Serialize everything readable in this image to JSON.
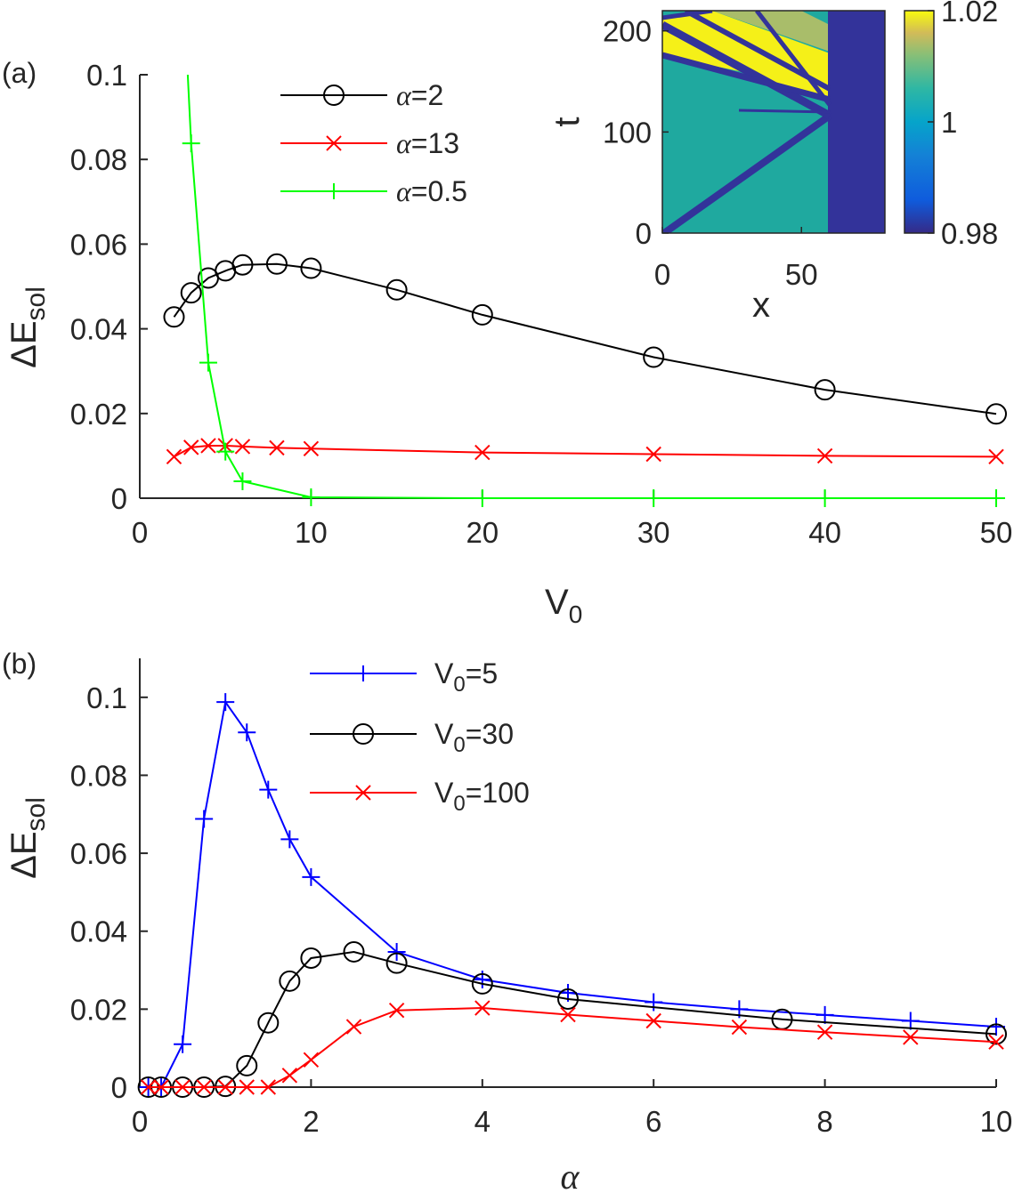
{
  "chart_data": [
    {
      "id": "a",
      "panel_label": "(a)",
      "type": "line",
      "xlabel": "V",
      "xlabel_sub": "0",
      "ylabel": "ΔE",
      "ylabel_sub": "sol",
      "xlim": [
        0,
        50
      ],
      "ylim": [
        0,
        0.1
      ],
      "xticks": [
        0,
        10,
        20,
        30,
        40,
        50
      ],
      "xtick_labels": [
        "0",
        "10",
        "20",
        "30",
        "40",
        "50"
      ],
      "yticks": [
        0,
        0.02,
        0.04,
        0.06,
        0.08,
        0.1
      ],
      "ytick_labels": [
        "0",
        "0.02",
        "0.04",
        "0.06",
        "0.08",
        "0.1"
      ],
      "legend_position": "top-center",
      "series": [
        {
          "name": "α=2",
          "sym": "α",
          "rest": "=2",
          "color": "#000000",
          "marker": "circle",
          "x": [
            2,
            3,
            4,
            5,
            6,
            8,
            10,
            15,
            20,
            30,
            40,
            50
          ],
          "y": [
            0.0428,
            0.0485,
            0.052,
            0.0537,
            0.0551,
            0.0553,
            0.0543,
            0.0492,
            0.0433,
            0.0333,
            0.0256,
            0.0199
          ]
        },
        {
          "name": "α=13",
          "sym": "α",
          "rest": "=13",
          "color": "#ff0000",
          "marker": "x",
          "x": [
            2,
            3,
            4,
            5,
            6,
            8,
            10,
            20,
            30,
            40,
            50
          ],
          "y": [
            0.0098,
            0.012,
            0.0124,
            0.0124,
            0.0122,
            0.0119,
            0.0117,
            0.0108,
            0.0104,
            0.01,
            0.0098
          ]
        },
        {
          "name": "α=0.5",
          "sym": "α",
          "rest": "=0.5",
          "color": "#00ff00",
          "marker": "plus",
          "x": [
            2.8,
            3,
            4,
            5,
            6,
            10,
            20,
            30,
            40,
            50
          ],
          "y": [
            0.1,
            0.0838,
            0.032,
            0.011,
            0.004,
            0.0002,
            0.0,
            0.0,
            0.0,
            0.0
          ],
          "marker_from": 1
        }
      ],
      "inset": {
        "type": "heatmap",
        "xlabel": "x",
        "ylabel": "t",
        "xticks": [
          0,
          50
        ],
        "yticks": [
          0,
          100,
          200
        ],
        "xlim": [
          0,
          80
        ],
        "ylim": [
          0,
          220
        ],
        "colorbar_ticks": [
          "0.98",
          "1",
          "1.02"
        ],
        "colorbar_range": [
          0.98,
          1.02
        ],
        "colors": {
          "background": "#20b0a0",
          "high": "#f5f018",
          "low": "#33339a"
        }
      }
    },
    {
      "id": "b",
      "panel_label": "(b)",
      "type": "line",
      "xlabel": "α",
      "ylabel": "ΔE",
      "ylabel_sub": "sol",
      "xlim": [
        0,
        10
      ],
      "ylim": [
        0,
        0.11
      ],
      "xticks": [
        0,
        2,
        4,
        6,
        8,
        10
      ],
      "xtick_labels": [
        "0",
        "2",
        "4",
        "6",
        "8",
        "10"
      ],
      "yticks": [
        0,
        0.02,
        0.04,
        0.06,
        0.08,
        0.1
      ],
      "ytick_labels": [
        "0",
        "0.02",
        "0.04",
        "0.06",
        "0.08",
        "0.1"
      ],
      "legend_position": "top-center",
      "series": [
        {
          "name": "V0=5",
          "pre": "V",
          "sub": "0",
          "rest": "=5",
          "color": "#0000ff",
          "marker": "plus",
          "x": [
            0.1,
            0.25,
            0.5,
            0.75,
            1.0,
            1.25,
            1.5,
            1.75,
            2.0,
            3.0,
            4.0,
            5.0,
            6.0,
            7.0,
            8.0,
            9.0,
            10.0
          ],
          "y": [
            0.0,
            0.0,
            0.011,
            0.0688,
            0.0988,
            0.091,
            0.0763,
            0.0636,
            0.0539,
            0.0347,
            0.0276,
            0.0242,
            0.0218,
            0.02,
            0.0185,
            0.017,
            0.0155
          ]
        },
        {
          "name": "V0=30",
          "pre": "V",
          "sub": "0",
          "rest": "=30",
          "color": "#000000",
          "marker": "circle",
          "x": [
            0.1,
            0.25,
            0.5,
            0.75,
            1.0,
            1.25,
            1.5,
            1.75,
            2.0,
            2.5,
            3.0,
            4.0,
            5.0,
            7.5,
            10.0
          ],
          "y": [
            0.0,
            0.0,
            0.0,
            0.0,
            0.0002,
            0.0055,
            0.0165,
            0.0272,
            0.0331,
            0.0347,
            0.0318,
            0.0265,
            0.0226,
            0.0174,
            0.0136
          ]
        },
        {
          "name": "V0=100",
          "pre": "V",
          "sub": "0",
          "rest": "=100",
          "color": "#ff0000",
          "marker": "x",
          "x": [
            0.1,
            0.25,
            0.5,
            0.75,
            1.0,
            1.25,
            1.5,
            1.75,
            2.0,
            2.5,
            3.0,
            4.0,
            5.0,
            6.0,
            7.0,
            8.0,
            9.0,
            10.0
          ],
          "y": [
            0.0,
            0.0,
            0.0,
            0.0,
            0.0,
            0.0,
            0.0,
            0.003,
            0.007,
            0.0155,
            0.0197,
            0.0203,
            0.0186,
            0.017,
            0.0154,
            0.0141,
            0.0128,
            0.0116
          ]
        }
      ]
    }
  ]
}
